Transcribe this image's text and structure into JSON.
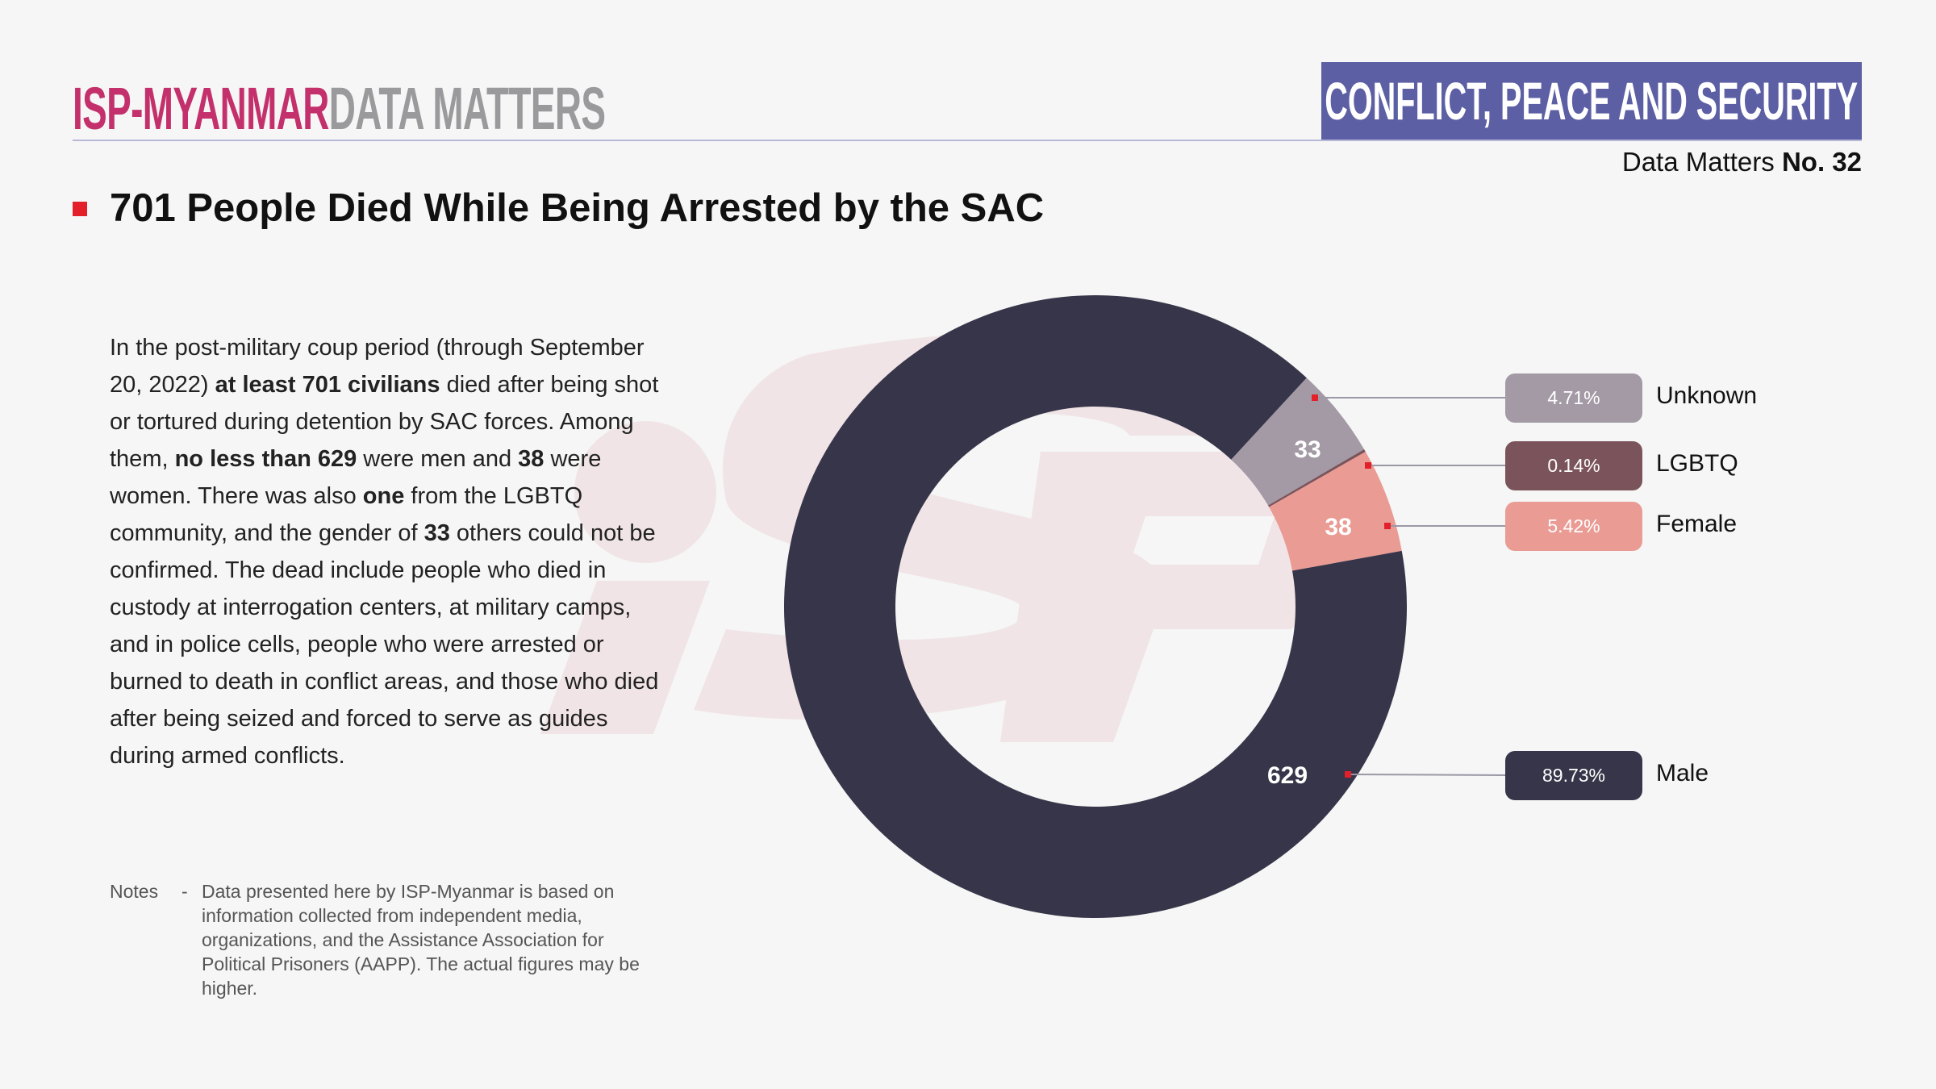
{
  "header": {
    "brand": "ISP-MYANMAR",
    "product": "DATA MATTERS",
    "category": "CONFLICT, PEACE AND SECURITY",
    "issue_prefix": "Data Matters ",
    "issue_number": "No. 32"
  },
  "title": "701 People Died While Being Arrested by the SAC",
  "body": [
    {
      "t": "In the post-military coup period (through September 20, 2022) "
    },
    {
      "t": "at least 701 civilians",
      "b": true
    },
    {
      "t": " died after being shot or tortured during detention by SAC forces. Among them, "
    },
    {
      "t": "no less than 629",
      "b": true
    },
    {
      "t": " were men and "
    },
    {
      "t": "38",
      "b": true
    },
    {
      "t": " were women. There was also "
    },
    {
      "t": "one",
      "b": true
    },
    {
      "t": " from the LGBTQ community, and the gender of "
    },
    {
      "t": "33",
      "b": true
    },
    {
      "t": " others could not be confirmed. The dead include people who died in custody at interrogation centers, at military camps, and in police cells, people who were arrested or burned to death in conflict areas, and those who died after being seized and forced to serve as guides during armed conflicts."
    }
  ],
  "notes": {
    "label": "Notes",
    "dash": "-",
    "text": "Data presented here by ISP-Myanmar is based on information collected from independent media, organizations, and the Assistance Association for Political Prisoners (AAPP). The actual figures may be higher."
  },
  "colors": {
    "brand": "#c3306b",
    "category_bg": "#5c5fa3",
    "marker": "#e3202a"
  },
  "chart_data": {
    "type": "pie",
    "donut": true,
    "slices": [
      {
        "name": "Unknown",
        "value": 33,
        "percent": "4.71%",
        "color": "#a39aa5",
        "label": "33"
      },
      {
        "name": "LGBTQ",
        "value": 1,
        "percent": "0.14%",
        "color": "#7a545a",
        "label": ""
      },
      {
        "name": "Female",
        "value": 38,
        "percent": "5.42%",
        "color": "#e99b94",
        "label": "38"
      },
      {
        "name": "Male",
        "value": 629,
        "percent": "89.73%",
        "color": "#373549",
        "label": "629"
      }
    ],
    "legend": "right"
  }
}
